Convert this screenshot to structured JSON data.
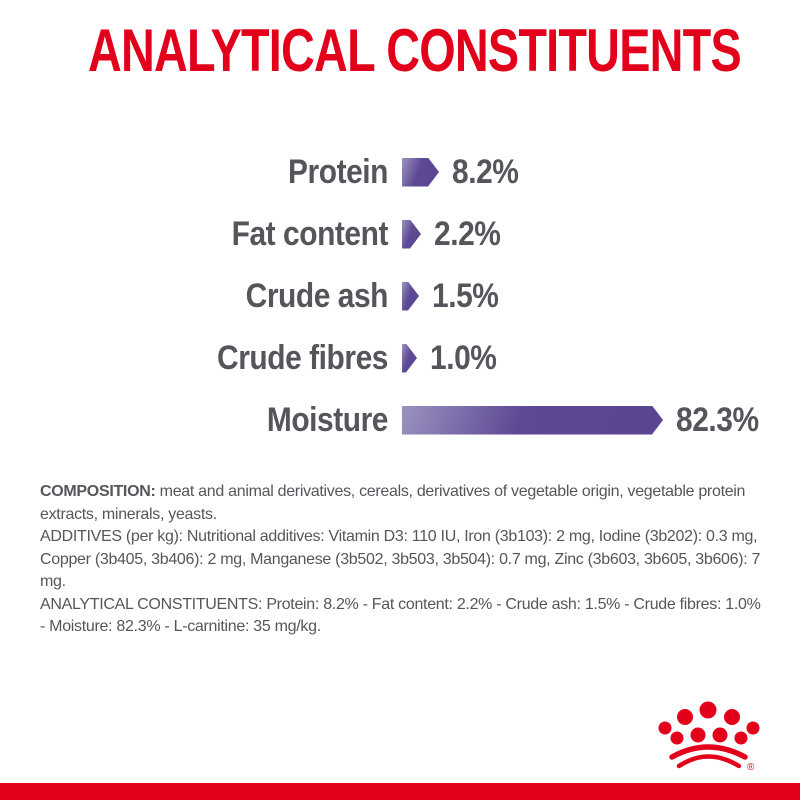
{
  "title": "ANALYTICAL CONSTITUENTS",
  "chart_data": {
    "type": "bar",
    "orientation": "horizontal",
    "title": "ANALYTICAL CONSTITUENTS",
    "categories": [
      "Protein",
      "Fat content",
      "Crude ash",
      "Crude fibres",
      "Moisture"
    ],
    "values": [
      8.2,
      2.2,
      1.5,
      1.0,
      82.3
    ],
    "value_labels": [
      "8.2%",
      "2.2%",
      "1.5%",
      "1.0%",
      "82.3%"
    ],
    "unit": "%",
    "xlim": [
      0,
      100
    ],
    "grid": false,
    "bar_style": "arrow-pentagon",
    "bar_gradient": [
      "#9b92c0",
      "#5e4994"
    ]
  },
  "legal": {
    "composition_heading": "COMPOSITION:",
    "composition_text": " meat and animal derivatives, cereals, derivatives of vegetable origin, vegetable protein extracts, minerals, yeasts.",
    "additives_text": "ADDITIVES (per kg): Nutritional additives: Vitamin D3: 110 IU, Iron (3b103): 2 mg, Iodine (3b202): 0.3 mg, Copper (3b405, 3b406): 2 mg, Manganese (3b502, 3b503, 3b504): 0.7 mg, Zinc (3b603, 3b605, 3b606): 7 mg.",
    "analytical_text": "ANALYTICAL CONSTITUENTS: Protein: 8.2% - Fat content: 2.2% - Crude ash: 1.5% - Crude fibres: 1.0% - Moisture: 82.3% - L-carnitine: 35 mg/kg."
  },
  "brand": {
    "logo": "royal-canin-crown",
    "registered_mark": "®"
  },
  "colors": {
    "red": "#e2001a",
    "text_gray": "#55565b",
    "purple_light": "#9b92c0",
    "purple_mid": "#5e4994",
    "purple_dark": "#5a4590"
  }
}
